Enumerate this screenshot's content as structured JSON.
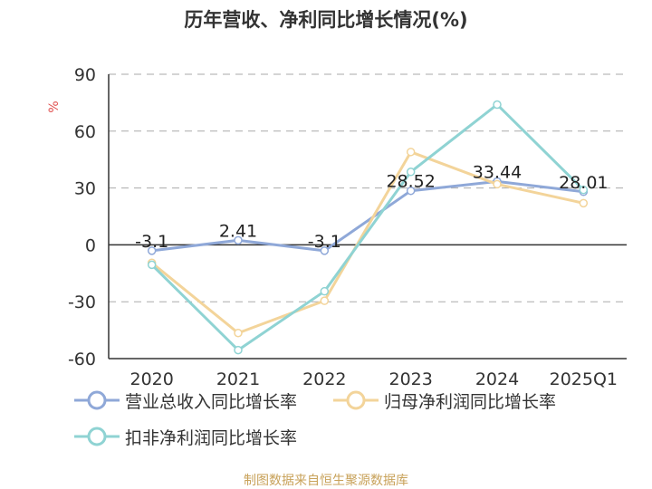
{
  "chart_data": {
    "type": "line",
    "title": "历年营收、净利同比增长情况(%)",
    "ylabel": "%",
    "xlabel": "",
    "categories": [
      "2020",
      "2021",
      "2022",
      "2023",
      "2024",
      "2025Q1"
    ],
    "ylim": [
      -60,
      90
    ],
    "yticks": [
      90,
      60,
      30,
      0,
      -30,
      -60
    ],
    "grid": true,
    "legend_position": "bottom",
    "series": [
      {
        "name": "营业总收入同比增长率",
        "values": [
          -3.1,
          2.41,
          -3.1,
          28.52,
          33.44,
          28.01
        ],
        "color": "#8fa8d8",
        "labels": [
          "-3.1",
          "2.41",
          "-3.1",
          "28.52",
          "33.44",
          "28.01"
        ]
      },
      {
        "name": "归母净利润同比增长率",
        "values": [
          -9.5,
          -46.5,
          -29.5,
          49.0,
          32.0,
          22.0
        ],
        "color": "#f3d49a"
      },
      {
        "name": "扣非净利润同比增长率",
        "values": [
          -10.5,
          -55.5,
          -24.5,
          38.5,
          74.0,
          29.0
        ],
        "color": "#8fd3d3"
      }
    ]
  },
  "source": "制图数据来自恒生聚源数据库"
}
